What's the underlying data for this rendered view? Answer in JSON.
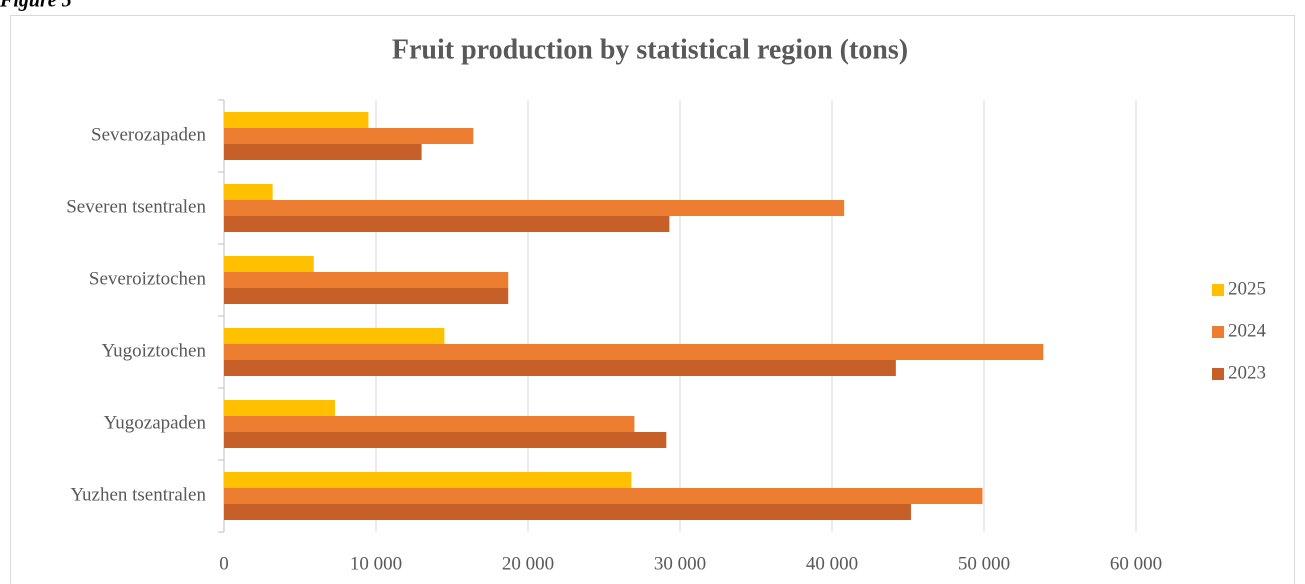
{
  "caption": "Figure 5",
  "chart_data": {
    "type": "hbar",
    "title": "Fruit production by statistical region (tons)",
    "categories": [
      "Severozapaden",
      "Severen tsentralen",
      "Severoiztochen",
      "Yugoiztochen",
      "Yugozapaden",
      "Yuzhen tsentralen"
    ],
    "series": [
      {
        "name": "2025",
        "color": "#ffc000",
        "values": [
          9500,
          3200,
          5900,
          14500,
          7300,
          26800
        ]
      },
      {
        "name": "2024",
        "color": "#ed7d31",
        "values": [
          16400,
          40800,
          18700,
          53900,
          27000,
          49900
        ]
      },
      {
        "name": "2023",
        "color": "#c65f28",
        "values": [
          13000,
          29300,
          18700,
          44200,
          29100,
          45200
        ]
      }
    ],
    "xlim": [
      0,
      60000
    ],
    "xticks": [
      0,
      {
        "value": 10000,
        "label": "10 000"
      },
      {
        "value": 20000,
        "label": "20 000"
      },
      {
        "value": 30000,
        "label": "30 000"
      },
      {
        "value": 40000,
        "label": "40 000"
      },
      {
        "value": 50000,
        "label": "50 000"
      },
      {
        "value": 60000,
        "label": "60 000"
      }
    ],
    "grid": true,
    "legend": "right"
  }
}
